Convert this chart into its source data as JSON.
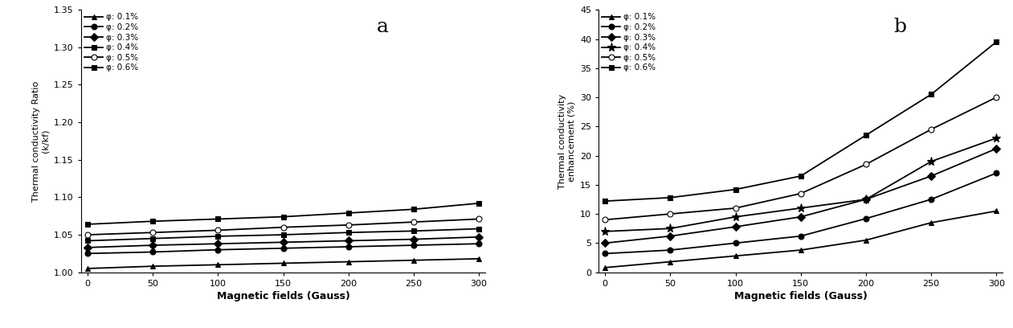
{
  "x": [
    0,
    50,
    100,
    150,
    200,
    250,
    300
  ],
  "panel_a": {
    "title": "a",
    "ylabel_top": "Thermal conductivity Ratio",
    "ylabel_bottom": "(k/kf)",
    "xlabel": "Magnetic fields (Gauss)",
    "ylim": [
      1.0,
      1.35
    ],
    "yticks": [
      1.0,
      1.05,
      1.1,
      1.15,
      1.2,
      1.25,
      1.3,
      1.35
    ],
    "series": [
      {
        "label": "φ: 0.1%",
        "marker": "^",
        "filled": true,
        "open": false,
        "star": false,
        "values": [
          1.005,
          1.008,
          1.01,
          1.012,
          1.014,
          1.016,
          1.018
        ]
      },
      {
        "label": "φ: 0.2%",
        "marker": "o",
        "filled": true,
        "open": false,
        "star": false,
        "values": [
          1.025,
          1.027,
          1.03,
          1.032,
          1.034,
          1.036,
          1.038
        ]
      },
      {
        "label": "φ: 0.3%",
        "marker": "D",
        "filled": true,
        "open": false,
        "star": false,
        "values": [
          1.033,
          1.036,
          1.038,
          1.04,
          1.042,
          1.044,
          1.047
        ]
      },
      {
        "label": "φ: 0.4%",
        "marker": "s",
        "filled": true,
        "open": false,
        "star": false,
        "values": [
          1.042,
          1.045,
          1.048,
          1.05,
          1.053,
          1.055,
          1.058
        ]
      },
      {
        "label": "φ: 0.5%",
        "marker": "o",
        "filled": false,
        "open": true,
        "star": false,
        "values": [
          1.05,
          1.053,
          1.056,
          1.06,
          1.063,
          1.067,
          1.071
        ]
      },
      {
        "label": "φ: 0.6%",
        "marker": "s",
        "filled": true,
        "open": false,
        "star": false,
        "values": [
          1.064,
          1.068,
          1.071,
          1.074,
          1.079,
          1.084,
          1.092
        ]
      }
    ]
  },
  "panel_b": {
    "title": "b",
    "ylabel": "Thermal conductivity\nenhancement (%)",
    "xlabel": "Magnetic fields (Gauss)",
    "ylim": [
      0,
      45
    ],
    "yticks": [
      0,
      5,
      10,
      15,
      20,
      25,
      30,
      35,
      40,
      45
    ],
    "series": [
      {
        "label": "φ: 0.1%",
        "marker": "^",
        "filled": true,
        "open": false,
        "star": false,
        "values": [
          0.8,
          1.8,
          2.8,
          3.8,
          5.5,
          8.5,
          10.5
        ]
      },
      {
        "label": "φ: 0.2%",
        "marker": "o",
        "filled": true,
        "open": false,
        "star": false,
        "values": [
          3.2,
          3.8,
          5.0,
          6.2,
          9.2,
          12.5,
          17.0
        ]
      },
      {
        "label": "φ: 0.3%",
        "marker": "D",
        "filled": true,
        "open": false,
        "star": false,
        "values": [
          5.0,
          6.2,
          7.8,
          9.5,
          12.5,
          16.5,
          21.2
        ]
      },
      {
        "label": "φ: 0.4%",
        "marker": "*",
        "filled": true,
        "open": false,
        "star": true,
        "values": [
          7.0,
          7.5,
          9.5,
          11.0,
          12.5,
          19.0,
          23.0
        ]
      },
      {
        "label": "φ: 0.5%",
        "marker": "o",
        "filled": false,
        "open": true,
        "star": false,
        "values": [
          9.0,
          10.0,
          11.0,
          13.5,
          18.5,
          24.5,
          30.0
        ]
      },
      {
        "label": "φ: 0.6%",
        "marker": "s",
        "filled": true,
        "open": false,
        "star": false,
        "values": [
          12.2,
          12.8,
          14.2,
          16.5,
          23.5,
          30.5,
          39.5
        ]
      }
    ]
  }
}
